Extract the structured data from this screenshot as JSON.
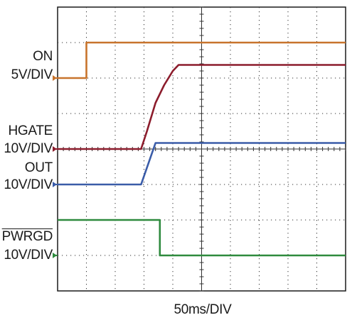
{
  "chart_data": {
    "type": "line",
    "title": "",
    "xlabel": "50ms/DIV",
    "x_units": "divisions",
    "y_units": "divisions",
    "grid": true,
    "xlim": [
      0,
      10
    ],
    "ylim": [
      0,
      8
    ],
    "series": [
      {
        "name": "ON",
        "scale": "5V/DIV",
        "color": "#c8742c",
        "marker_level": 6.0,
        "x": [
          0,
          1.0,
          1.0,
          10
        ],
        "y": [
          6.0,
          6.0,
          7.0,
          7.0
        ]
      },
      {
        "name": "HGATE",
        "scale": "10V/DIV",
        "color": "#8c1c2c",
        "marker_level": 4.0,
        "x": [
          0,
          2.9,
          3.1,
          3.4,
          3.7,
          4.0,
          4.2,
          10
        ],
        "y": [
          4.0,
          4.0,
          4.5,
          5.3,
          5.8,
          6.2,
          6.37,
          6.37
        ]
      },
      {
        "name": "OUT",
        "scale": "10V/DIV",
        "color": "#3a5ca8",
        "marker_level": 3.0,
        "x": [
          0,
          2.9,
          3.4,
          10
        ],
        "y": [
          3.0,
          3.0,
          4.17,
          4.17
        ]
      },
      {
        "name": "PWRGD",
        "scale": "10V/DIV",
        "color": "#2e8a3e",
        "marker_level": 1.0,
        "x": [
          0,
          3.55,
          3.55,
          10
        ],
        "y": [
          2.0,
          2.0,
          1.0,
          1.0
        ]
      }
    ]
  },
  "labels": {
    "on": "ON",
    "on_scale": "5V/DIV",
    "hgate": "HGATE",
    "hgate_scale": "10V/DIV",
    "out": "OUT",
    "out_scale": "10V/DIV",
    "pwrgd": "PWRGD",
    "pwrgd_scale": "10V/DIV"
  }
}
